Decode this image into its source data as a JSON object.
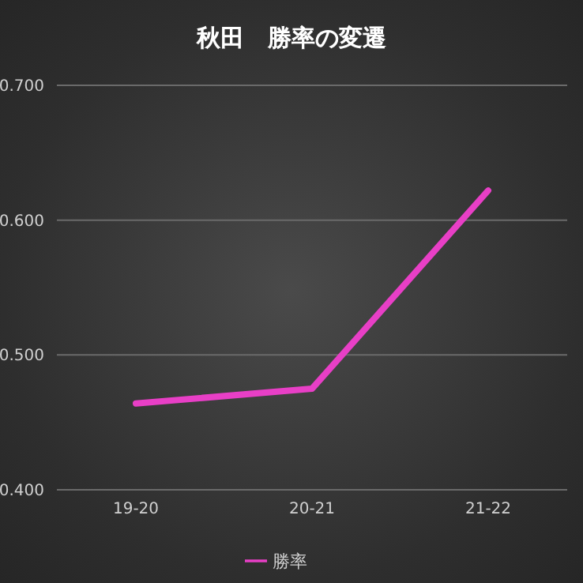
{
  "chart_data": {
    "type": "line",
    "title": "秋田　勝率の変遷",
    "categories": [
      "19-20",
      "20-21",
      "21-22"
    ],
    "series": [
      {
        "name": "勝率",
        "color": "#e83fc6",
        "values": [
          0.464,
          0.475,
          0.622
        ]
      }
    ],
    "ylim": [
      0.4,
      0.7
    ],
    "yticks": [
      {
        "value": 0.4,
        "label": "0.400"
      },
      {
        "value": 0.5,
        "label": "0.500"
      },
      {
        "value": 0.6,
        "label": "0.600"
      },
      {
        "value": 0.7,
        "label": "0.700"
      }
    ],
    "grid": "y",
    "legend": "bottom",
    "marker": "none",
    "line_style": "solid"
  }
}
